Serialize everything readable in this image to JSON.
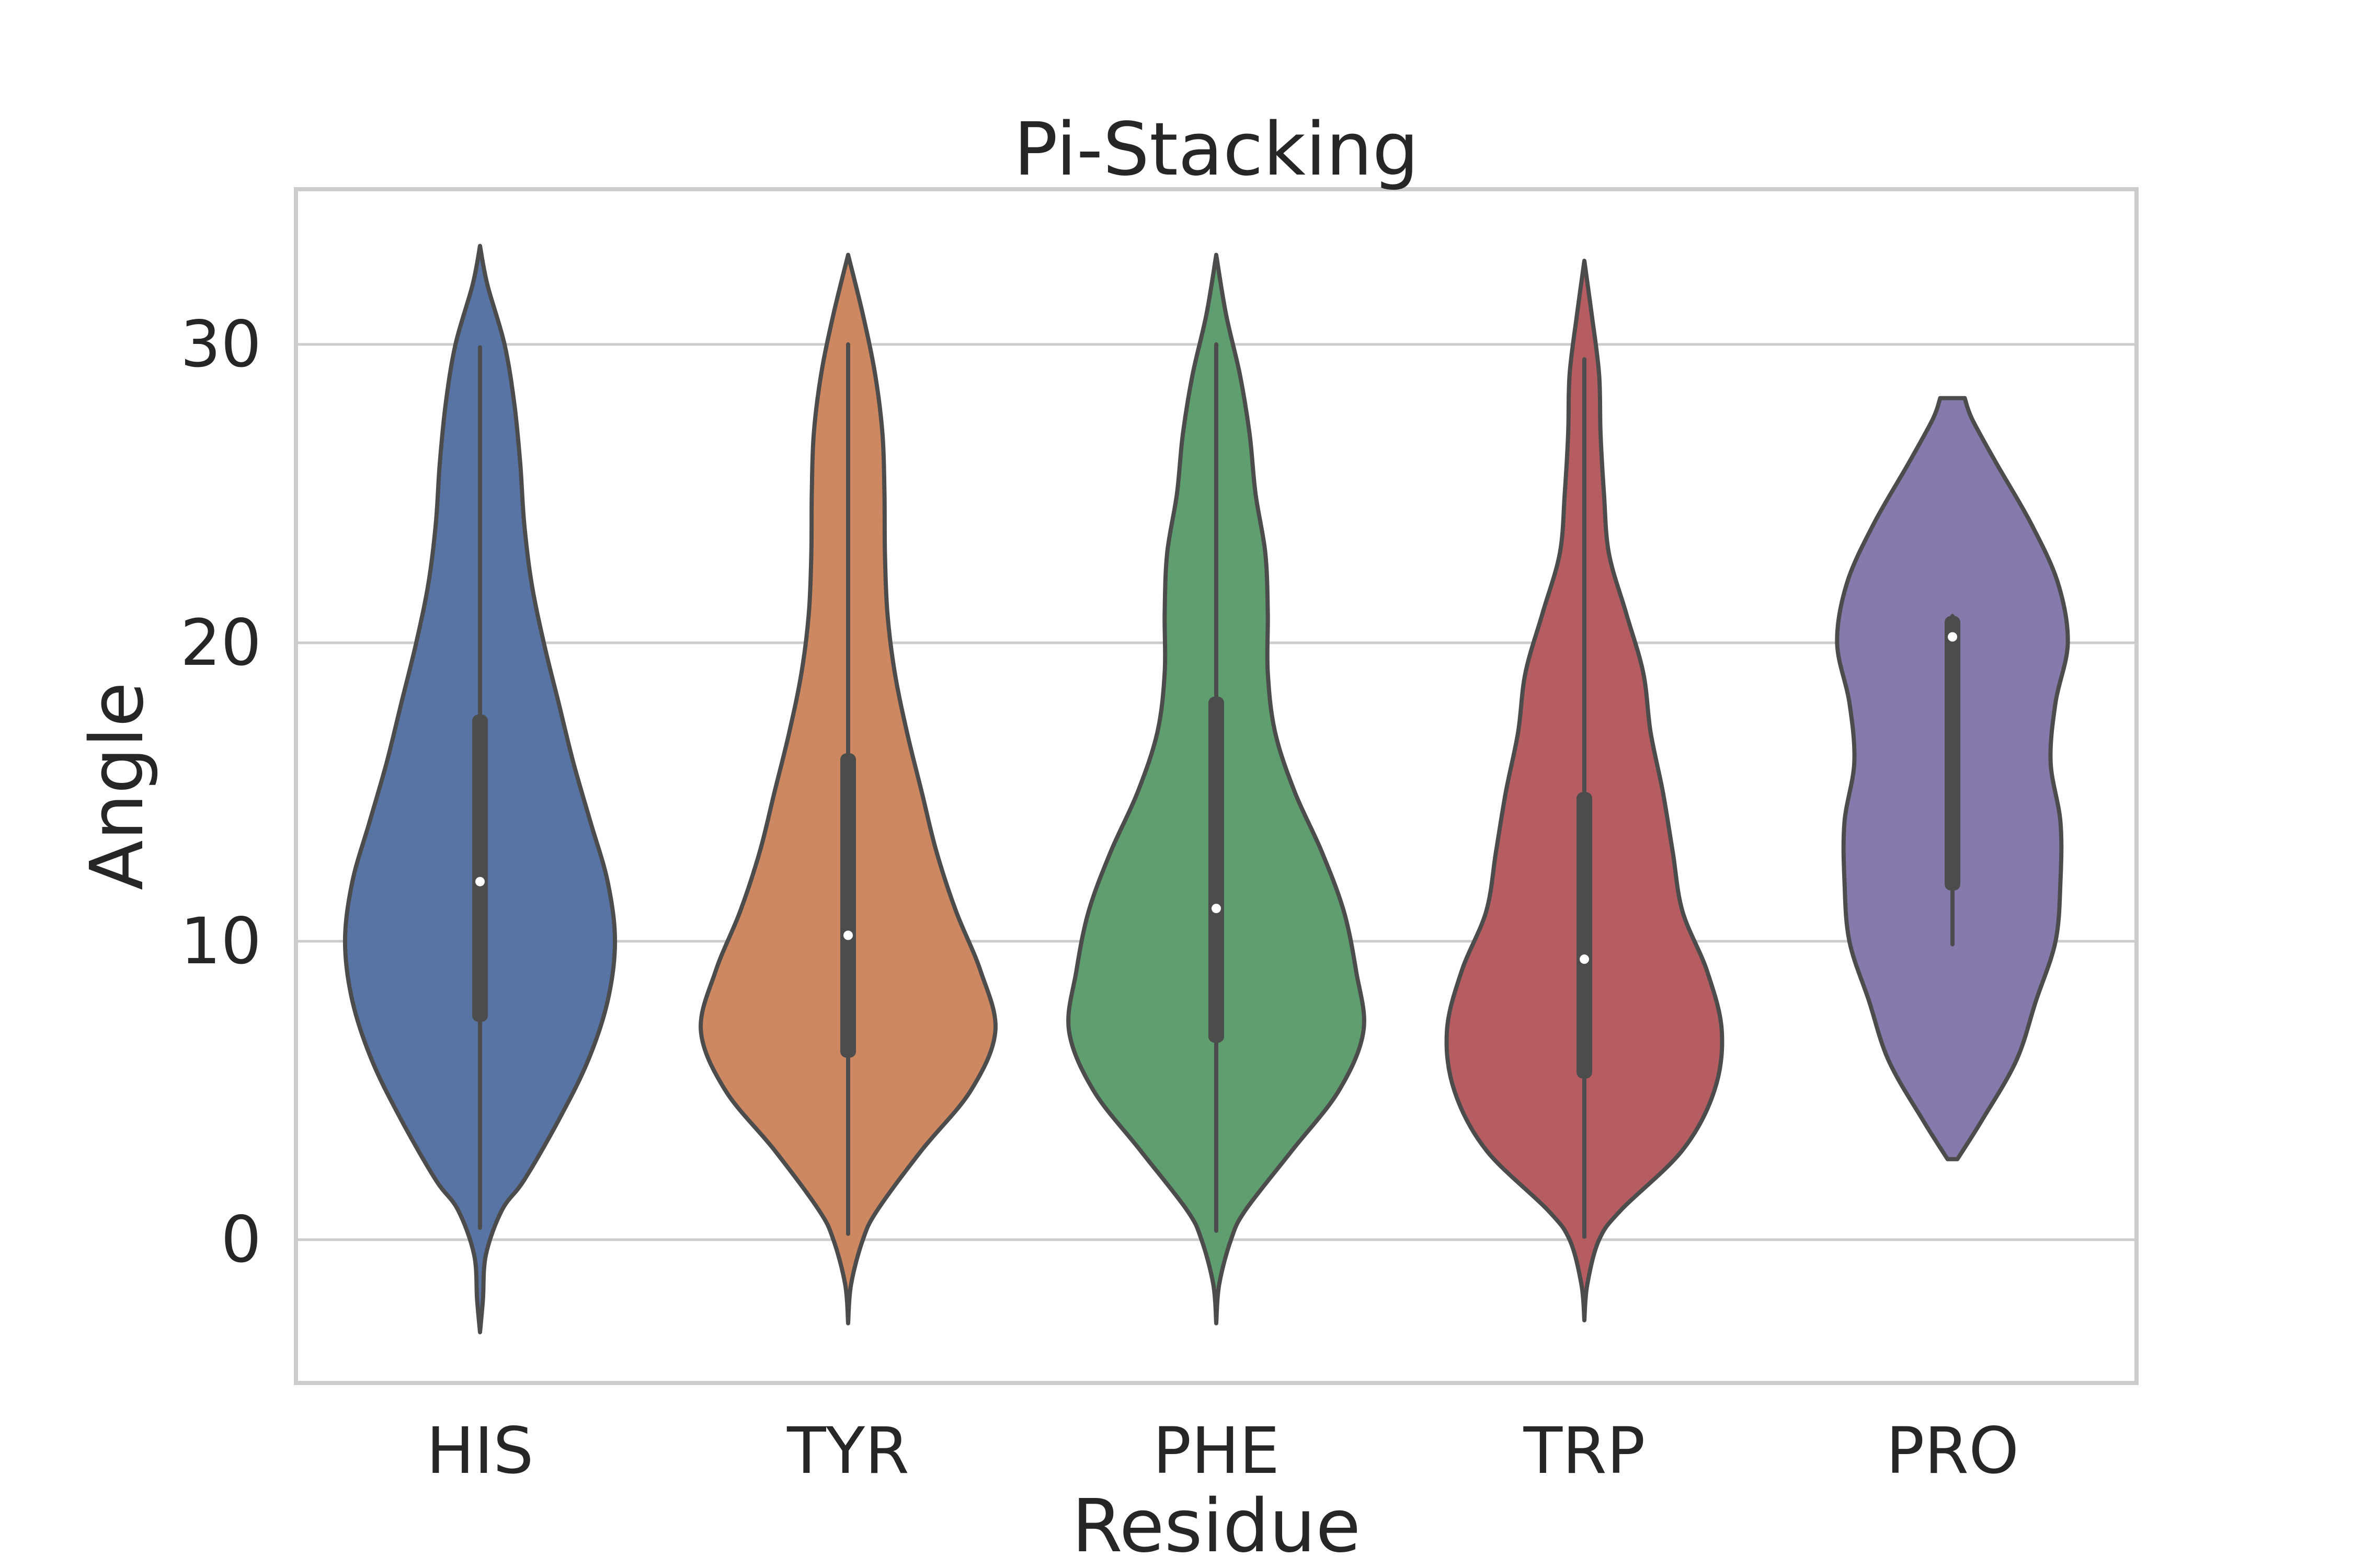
{
  "chart_data": {
    "type": "violin",
    "title": "Pi-Stacking",
    "xlabel": "Residue",
    "ylabel": "Angle",
    "ylim": [
      -4.8,
      35.2
    ],
    "yticks": [
      0,
      10,
      20,
      30
    ],
    "grid": true,
    "categories": [
      "HIS",
      "TYR",
      "PHE",
      "TRP",
      "PRO"
    ],
    "colors": [
      "#5874a4",
      "#cd8861",
      "#5f9e6e",
      "#b65d61",
      "#857aab"
    ],
    "stats": [
      {
        "min": 0.4,
        "q1": 7.3,
        "median": 12.0,
        "q3": 17.6,
        "max": 29.9
      },
      {
        "min": 0.2,
        "q1": 6.1,
        "median": 10.2,
        "q3": 16.3,
        "max": 30.0
      },
      {
        "min": 0.3,
        "q1": 6.6,
        "median": 11.1,
        "q3": 18.2,
        "max": 30.0
      },
      {
        "min": 0.1,
        "q1": 5.4,
        "median": 9.4,
        "q3": 15.0,
        "max": 29.5
      },
      {
        "min": 9.9,
        "q1": 11.7,
        "median": 20.2,
        "q3": 20.9,
        "max": 20.9
      }
    ],
    "density": [
      [
        [
          -3.1,
          0
        ],
        [
          -2,
          0.006
        ],
        [
          -0.5,
          0.012
        ],
        [
          1,
          0.045
        ],
        [
          2,
          0.09
        ],
        [
          4,
          0.16
        ],
        [
          6,
          0.22
        ],
        [
          8,
          0.26
        ],
        [
          10,
          0.275
        ],
        [
          12,
          0.26
        ],
        [
          14,
          0.225
        ],
        [
          16,
          0.19
        ],
        [
          18,
          0.16
        ],
        [
          20,
          0.13
        ],
        [
          22,
          0.105
        ],
        [
          24,
          0.09
        ],
        [
          26,
          0.082
        ],
        [
          28,
          0.07
        ],
        [
          30,
          0.05
        ],
        [
          32,
          0.015
        ],
        [
          33.3,
          0
        ]
      ],
      [
        [
          -2.8,
          0
        ],
        [
          -1.5,
          0.006
        ],
        [
          0,
          0.03
        ],
        [
          1,
          0.06
        ],
        [
          3,
          0.15
        ],
        [
          5,
          0.25
        ],
        [
          7,
          0.3
        ],
        [
          9,
          0.27
        ],
        [
          11,
          0.22
        ],
        [
          13,
          0.18
        ],
        [
          15,
          0.15
        ],
        [
          17,
          0.12
        ],
        [
          19,
          0.095
        ],
        [
          21,
          0.08
        ],
        [
          23,
          0.075
        ],
        [
          25,
          0.074
        ],
        [
          27,
          0.07
        ],
        [
          29,
          0.055
        ],
        [
          31,
          0.03
        ],
        [
          33,
          0
        ]
      ],
      [
        [
          -2.8,
          0
        ],
        [
          -1.5,
          0.006
        ],
        [
          0,
          0.03
        ],
        [
          1,
          0.06
        ],
        [
          3,
          0.155
        ],
        [
          5,
          0.25
        ],
        [
          7,
          0.3
        ],
        [
          9,
          0.285
        ],
        [
          11,
          0.26
        ],
        [
          13,
          0.215
        ],
        [
          15,
          0.16
        ],
        [
          17,
          0.12
        ],
        [
          19,
          0.105
        ],
        [
          21,
          0.105
        ],
        [
          23,
          0.1
        ],
        [
          25,
          0.08
        ],
        [
          27,
          0.068
        ],
        [
          29,
          0.048
        ],
        [
          31,
          0.02
        ],
        [
          33,
          0
        ]
      ],
      [
        [
          -2.7,
          0
        ],
        [
          -1.5,
          0.006
        ],
        [
          0,
          0.03
        ],
        [
          1,
          0.075
        ],
        [
          3,
          0.2
        ],
        [
          5,
          0.265
        ],
        [
          7,
          0.28
        ],
        [
          9,
          0.25
        ],
        [
          11,
          0.2
        ],
        [
          13,
          0.18
        ],
        [
          15,
          0.16
        ],
        [
          17,
          0.135
        ],
        [
          19,
          0.12
        ],
        [
          21,
          0.085
        ],
        [
          23,
          0.05
        ],
        [
          25,
          0.04
        ],
        [
          27,
          0.033
        ],
        [
          29,
          0.03
        ],
        [
          31,
          0.015
        ],
        [
          32.8,
          0
        ]
      ],
      [
        [
          2.7,
          0.01
        ],
        [
          4,
          0.06
        ],
        [
          6,
          0.13
        ],
        [
          8,
          0.17
        ],
        [
          10,
          0.21
        ],
        [
          12,
          0.22
        ],
        [
          14,
          0.22
        ],
        [
          16,
          0.2
        ],
        [
          18,
          0.21
        ],
        [
          20,
          0.235
        ],
        [
          22,
          0.215
        ],
        [
          24,
          0.16
        ],
        [
          26,
          0.09
        ],
        [
          27.5,
          0.04
        ],
        [
          28.2,
          0.025
        ]
      ]
    ]
  }
}
